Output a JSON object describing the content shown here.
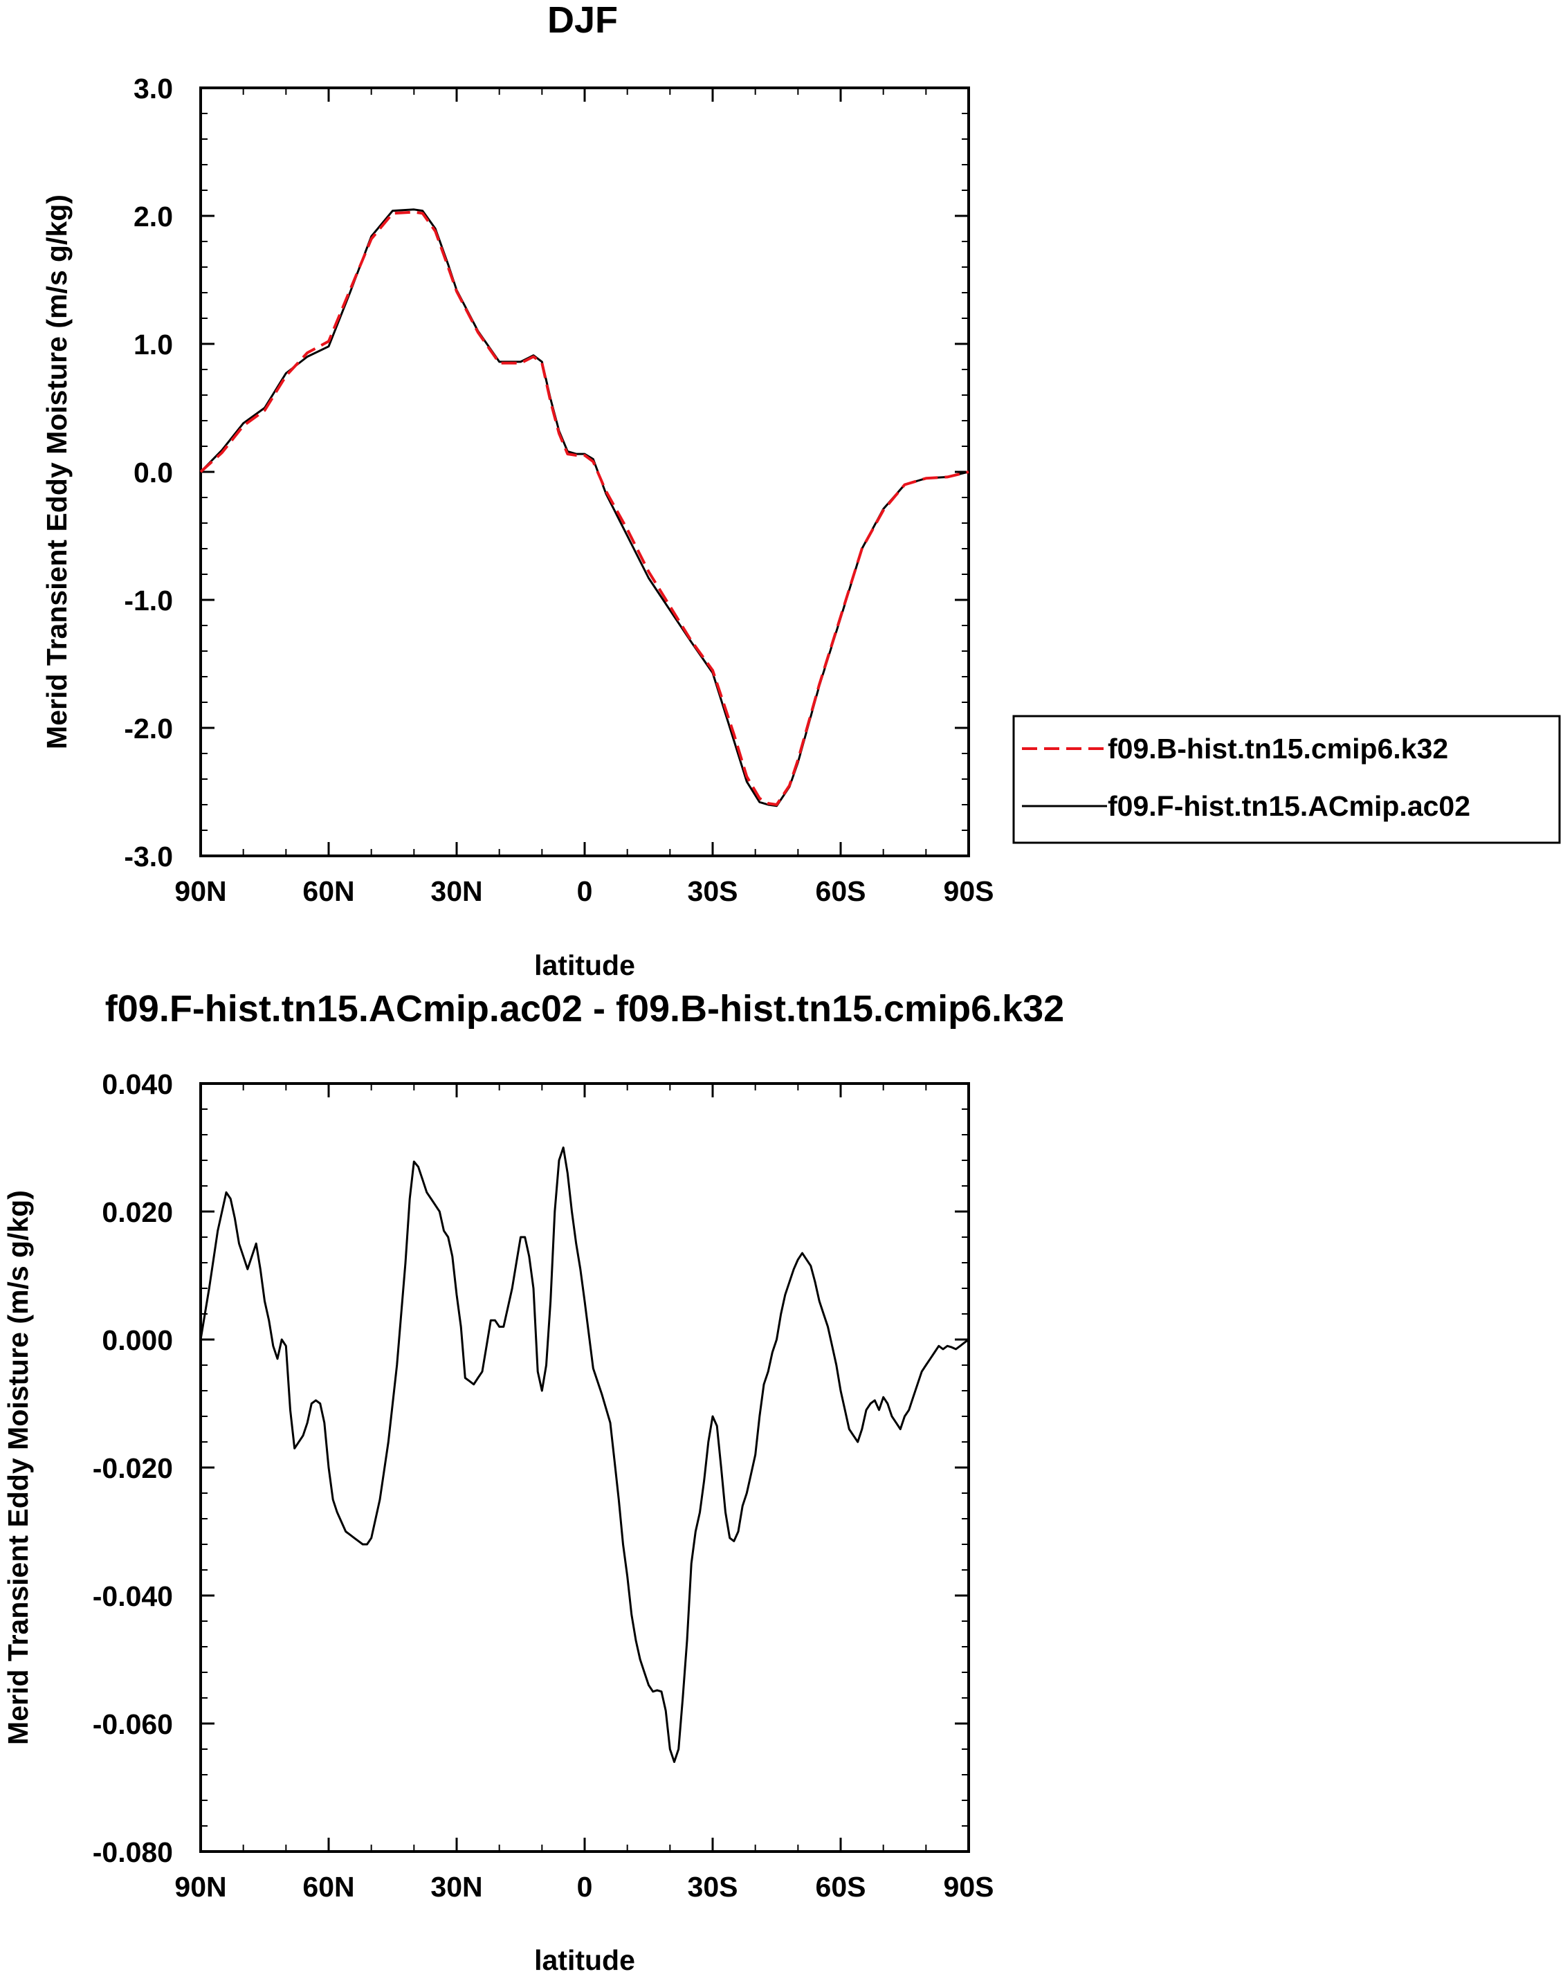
{
  "chart_data": [
    {
      "type": "line",
      "title": "DJF",
      "xlabel": "latitude",
      "ylabel": "Merid Transient Eddy Moisture (m/s g/kg)",
      "xlim": [
        90,
        -90
      ],
      "ylim": [
        -3.0,
        3.0
      ],
      "x_ticks": [
        90,
        60,
        30,
        0,
        -30,
        -60,
        -90
      ],
      "x_tick_labels": [
        "90N",
        "60N",
        "30N",
        "0",
        "30S",
        "60S",
        "90S"
      ],
      "y_ticks": [
        3.0,
        2.0,
        1.0,
        0.0,
        -1.0,
        -2.0,
        -3.0
      ],
      "y_tick_labels": [
        "3.0",
        "2.0",
        "1.0",
        "0.0",
        "-1.0",
        "-2.0",
        "-3.0"
      ],
      "legend_position": "right",
      "grid": false,
      "series": [
        {
          "name": "f09.B-hist.tn15.cmip6.k32",
          "color": "#e8141c",
          "dash": "dashed",
          "x": [
            90,
            85,
            80,
            75,
            70,
            65,
            60,
            55,
            50,
            45,
            40,
            38,
            35,
            32,
            30,
            25,
            20,
            15,
            12,
            10,
            8,
            6,
            4,
            2,
            0,
            -2,
            -5,
            -10,
            -15,
            -20,
            -25,
            -30,
            -35,
            -38,
            -41,
            -43,
            -45,
            -48,
            -50,
            -55,
            -60,
            -65,
            -70,
            -75,
            -80,
            -85,
            -90
          ],
          "values": [
            0.0,
            0.15,
            0.36,
            0.48,
            0.75,
            0.93,
            1.02,
            1.42,
            1.82,
            2.02,
            2.03,
            2.02,
            1.88,
            1.6,
            1.41,
            1.09,
            0.85,
            0.85,
            0.9,
            0.85,
            0.55,
            0.3,
            0.14,
            0.13,
            0.13,
            0.08,
            -0.15,
            -0.45,
            -0.78,
            -1.05,
            -1.32,
            -1.55,
            -2.05,
            -2.38,
            -2.55,
            -2.59,
            -2.6,
            -2.45,
            -2.25,
            -1.66,
            -1.13,
            -0.6,
            -0.3,
            -0.1,
            -0.05,
            -0.04,
            0.0
          ]
        },
        {
          "name": "f09.F-hist.tn15.ACmip.ac02",
          "color": "#000000",
          "dash": "solid",
          "x": [
            90,
            85,
            80,
            75,
            70,
            65,
            60,
            55,
            50,
            45,
            40,
            38,
            35,
            32,
            30,
            25,
            20,
            15,
            12,
            10,
            8,
            6,
            4,
            2,
            0,
            -2,
            -5,
            -10,
            -15,
            -20,
            -25,
            -30,
            -35,
            -38,
            -41,
            -43,
            -45,
            -48,
            -50,
            -55,
            -60,
            -65,
            -70,
            -75,
            -80,
            -85,
            -90
          ],
          "values": [
            0.0,
            0.17,
            0.38,
            0.5,
            0.77,
            0.9,
            0.98,
            1.4,
            1.84,
            2.04,
            2.05,
            2.04,
            1.9,
            1.62,
            1.42,
            1.1,
            0.86,
            0.86,
            0.91,
            0.86,
            0.57,
            0.32,
            0.16,
            0.14,
            0.14,
            0.1,
            -0.17,
            -0.5,
            -0.83,
            -1.08,
            -1.33,
            -1.57,
            -2.1,
            -2.42,
            -2.58,
            -2.6,
            -2.61,
            -2.46,
            -2.27,
            -1.67,
            -1.14,
            -0.6,
            -0.29,
            -0.1,
            -0.05,
            -0.04,
            0.0
          ]
        }
      ]
    },
    {
      "type": "line",
      "title": "f09.F-hist.tn15.ACmip.ac02 - f09.B-hist.tn15.cmip6.k32",
      "xlabel": "latitude",
      "ylabel": "Merid Transient Eddy Moisture (m/s g/kg)",
      "xlim": [
        90,
        -90
      ],
      "ylim": [
        -0.08,
        0.04
      ],
      "x_ticks": [
        90,
        60,
        30,
        0,
        -30,
        -60,
        -90
      ],
      "x_tick_labels": [
        "90N",
        "60N",
        "30N",
        "0",
        "30S",
        "60S",
        "90S"
      ],
      "y_ticks": [
        0.04,
        0.02,
        0.0,
        -0.02,
        -0.04,
        -0.06,
        -0.08
      ],
      "y_tick_labels": [
        "0.040",
        "0.020",
        "0.000",
        "-0.020",
        "-0.040",
        "-0.060",
        "-0.080"
      ],
      "grid": false,
      "series": [
        {
          "name": "f09.F-hist.tn15.ACmip.ac02 - f09.B-hist.tn15.cmip6.k32",
          "color": "#000000",
          "dash": "solid",
          "x": [
            90,
            88,
            86,
            84,
            83,
            82,
            81,
            80,
            79,
            78,
            77,
            76,
            75,
            74,
            73,
            72,
            71,
            70,
            69,
            68,
            66,
            65,
            64,
            63,
            62,
            61,
            60,
            59,
            58,
            56,
            55,
            54,
            53,
            52,
            51,
            50,
            48,
            46,
            44,
            42,
            41,
            40,
            39,
            38,
            37,
            36,
            35,
            34,
            33,
            32,
            31,
            30,
            29,
            28,
            27,
            26,
            25,
            24,
            23,
            22,
            21,
            20,
            19,
            18,
            17,
            16,
            15,
            14,
            13,
            12,
            11,
            10,
            9,
            8,
            7,
            6,
            5,
            4,
            3,
            2,
            1,
            0,
            -2,
            -4,
            -6,
            -7,
            -8,
            -9,
            -10,
            -11,
            -12,
            -13,
            -14,
            -15,
            -16,
            -17,
            -18,
            -19,
            -20,
            -21,
            -22,
            -23,
            -24,
            -25,
            -26,
            -27,
            -28,
            -29,
            -30,
            -31,
            -32,
            -33,
            -34,
            -35,
            -36,
            -37,
            -38,
            -39,
            -40,
            -41,
            -42,
            -43,
            -44,
            -45,
            -46,
            -47,
            -48,
            -49,
            -50,
            -51,
            -52,
            -53,
            -54,
            -55,
            -56,
            -57,
            -58,
            -59,
            -60,
            -61,
            -62,
            -63,
            -64,
            -65,
            -66,
            -67,
            -68,
            -69,
            -70,
            -71,
            -72,
            -73,
            -74,
            -75,
            -76,
            -77,
            -78,
            -79,
            -80,
            -81,
            -82,
            -83,
            -84,
            -85,
            -86,
            -87,
            -88,
            -89,
            -90
          ],
          "values": [
            0.0,
            0.008,
            0.017,
            0.023,
            0.022,
            0.019,
            0.015,
            0.013,
            0.011,
            0.013,
            0.015,
            0.011,
            0.006,
            0.003,
            -0.001,
            -0.003,
            0.0,
            -0.001,
            -0.011,
            -0.017,
            -0.015,
            -0.013,
            -0.01,
            -0.0095,
            -0.01,
            -0.013,
            -0.02,
            -0.025,
            -0.027,
            -0.03,
            -0.0305,
            -0.031,
            -0.0315,
            -0.032,
            -0.032,
            -0.031,
            -0.025,
            -0.016,
            -0.004,
            0.012,
            0.022,
            0.0278,
            0.027,
            0.025,
            0.023,
            0.022,
            0.021,
            0.02,
            0.017,
            0.016,
            0.013,
            0.007,
            0.002,
            -0.006,
            -0.0065,
            -0.007,
            -0.006,
            -0.005,
            -0.001,
            0.003,
            0.003,
            0.002,
            0.002,
            0.005,
            0.008,
            0.012,
            0.016,
            0.016,
            0.013,
            0.008,
            -0.005,
            -0.008,
            -0.004,
            0.006,
            0.02,
            0.028,
            0.03,
            0.026,
            0.02,
            0.015,
            0.011,
            0.006,
            -0.0045,
            -0.0085,
            -0.013,
            -0.019,
            -0.025,
            -0.032,
            -0.037,
            -0.043,
            -0.047,
            -0.05,
            -0.052,
            -0.054,
            -0.055,
            -0.0548,
            -0.055,
            -0.058,
            -0.064,
            -0.066,
            -0.064,
            -0.056,
            -0.047,
            -0.035,
            -0.03,
            -0.027,
            -0.022,
            -0.016,
            -0.012,
            -0.0135,
            -0.02,
            -0.027,
            -0.031,
            -0.0315,
            -0.03,
            -0.026,
            -0.024,
            -0.021,
            -0.018,
            -0.012,
            -0.007,
            -0.005,
            -0.002,
            0.0,
            0.004,
            0.007,
            0.009,
            0.011,
            0.0125,
            0.0135,
            0.0125,
            0.0115,
            0.009,
            0.006,
            0.004,
            0.002,
            -0.001,
            -0.004,
            -0.008,
            -0.011,
            -0.014,
            -0.015,
            -0.016,
            -0.014,
            -0.011,
            -0.01,
            -0.0095,
            -0.011,
            -0.009,
            -0.01,
            -0.012,
            -0.013,
            -0.014,
            -0.012,
            -0.011,
            -0.009,
            -0.007,
            -0.005,
            -0.004,
            -0.003,
            -0.002,
            -0.001,
            -0.0015,
            -0.001,
            -0.0012,
            -0.0015,
            -0.001,
            -0.0005,
            0.0
          ]
        }
      ]
    }
  ]
}
